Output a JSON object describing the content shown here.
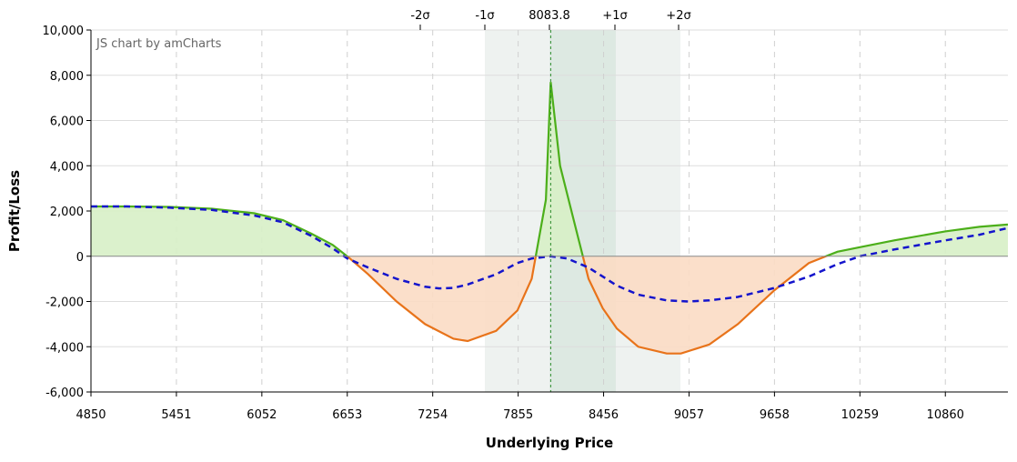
{
  "chart_data": {
    "type": "area",
    "credit": "JS chart by amCharts",
    "xlabel": "Underlying Price",
    "ylabel": "Profit/Loss",
    "xlim": [
      4850,
      11300
    ],
    "ylim": [
      -6000,
      10000
    ],
    "x_ticks": [
      4850,
      5451,
      6052,
      6653,
      7254,
      7855,
      8456,
      9057,
      9658,
      10259,
      10860
    ],
    "x_tick_labels": [
      "4850",
      "5451",
      "6052",
      "6653",
      "7254",
      "7855",
      "8456",
      "9057",
      "9658",
      "10259",
      "10860"
    ],
    "y_ticks": [
      -6000,
      -4000,
      -2000,
      0,
      2000,
      4000,
      6000,
      8000,
      10000
    ],
    "y_tick_labels": [
      "-6,000",
      "-4,000",
      "-2,000",
      "0",
      "2,000",
      "4,000",
      "6,000",
      "8,000",
      "10,000"
    ],
    "grid": true,
    "current_price": 8083.8,
    "sigma_markers": [
      {
        "label": "-2σ",
        "x": 7621
      },
      {
        "label": "-1σ",
        "x": 8078
      },
      {
        "label": "8083.8",
        "x": 8083.8
      },
      {
        "label": "+1σ",
        "x": 8542
      },
      {
        "label": "+2σ",
        "x": 8996
      }
    ],
    "sigma_bands": {
      "two_sigma": [
        7621,
        8996
      ],
      "one_sigma": [
        8078,
        8542
      ]
    },
    "series": [
      {
        "style": "expiration",
        "x": [
          4850,
          5100,
          5400,
          5700,
          6000,
          6200,
          6400,
          6550,
          6653,
          6800,
          7000,
          7200,
          7400,
          7500,
          7700,
          7850,
          7950,
          8050,
          8083.8,
          8150,
          8250,
          8350,
          8450,
          8550,
          8700,
          8900,
          9000,
          9200,
          9400,
          9658,
          9900,
          10100,
          10259,
          10500,
          10860,
          11100,
          11300
        ],
        "y": [
          2200,
          2200,
          2180,
          2100,
          1900,
          1600,
          1000,
          500,
          0,
          -800,
          -2000,
          -3000,
          -3650,
          -3750,
          -3300,
          -2400,
          -1000,
          2500,
          7700,
          4000,
          1500,
          -1000,
          -2300,
          -3200,
          -4000,
          -4300,
          -4300,
          -3900,
          -3000,
          -1500,
          -300,
          200,
          400,
          700,
          1100,
          1300,
          1400
        ],
        "positive_color": "#4caf1a",
        "negative_color": "#e8731a"
      },
      {
        "style": "today",
        "color": "#1414cc",
        "x": [
          4850,
          5100,
          5400,
          5700,
          6000,
          6200,
          6400,
          6550,
          6653,
          6800,
          7000,
          7200,
          7300,
          7400,
          7500,
          7700,
          7850,
          7950,
          8083.8,
          8200,
          8350,
          8450,
          8550,
          8700,
          8900,
          9050,
          9200,
          9400,
          9658,
          9900,
          10100,
          10259,
          10500,
          10860,
          11100,
          11300
        ],
        "y": [
          2200,
          2200,
          2150,
          2050,
          1800,
          1500,
          900,
          350,
          -100,
          -500,
          -1000,
          -1350,
          -1420,
          -1400,
          -1250,
          -800,
          -300,
          -100,
          0,
          -100,
          -500,
          -900,
          -1300,
          -1700,
          -1950,
          -2000,
          -1950,
          -1800,
          -1400,
          -900,
          -350,
          0,
          300,
          700,
          950,
          1250
        ]
      }
    ]
  },
  "colors": {
    "profit_fill": "#d7f0c6",
    "loss_fill": "#fbdcc4",
    "band_outer": "#eef2f0",
    "band_inner": "#dde9e2",
    "grid": "#dddddd",
    "zero_line": "#888888",
    "current_line": "#2a8a2a"
  }
}
